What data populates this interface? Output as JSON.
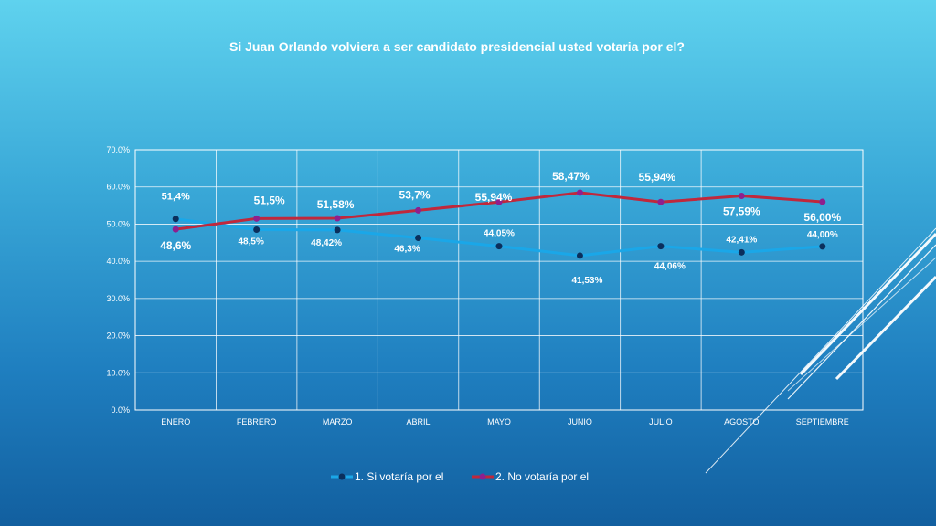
{
  "chart_data": {
    "type": "line",
    "title": "Si Juan Orlando volviera a ser candidato presidencial usted votaria por el?",
    "categories": [
      "ENERO",
      "FEBRERO",
      "MARZO",
      "ABRIL",
      "MAYO",
      "JUNIO",
      "JULIO",
      "AGOSTO",
      "SEPTIEMBRE"
    ],
    "ylim": [
      0,
      70
    ],
    "y_ticks": [
      "0.0%",
      "10.0%",
      "20.0%",
      "30.0%",
      "40.0%",
      "50.0%",
      "60.0%",
      "70.0%"
    ],
    "grid": true,
    "legend_position": "bottom",
    "series": [
      {
        "name": "1. Si votaría por el",
        "color": "#1aa7e8",
        "marker_color": "#0b2f5c",
        "values": [
          51.4,
          48.5,
          48.42,
          46.3,
          44.05,
          41.53,
          44.06,
          42.41,
          44.0
        ],
        "labels": [
          "51,4%",
          "48,5%",
          "48,42%",
          "46,3%",
          "44,05%",
          "41,53%",
          "44,06%",
          "42,41%",
          "44,00%"
        ]
      },
      {
        "name": "2. No votaría por el",
        "color": "#c0283c",
        "marker_color": "#8e1f8e",
        "values": [
          48.6,
          51.5,
          51.58,
          53.7,
          55.94,
          58.47,
          55.94,
          57.59,
          56.0
        ],
        "labels": [
          "48,6%",
          "51,5%",
          "51,58%",
          "53,7%",
          "55,94%",
          "58,47%",
          "55,94%",
          "57,59%",
          "56,00%"
        ]
      }
    ]
  }
}
